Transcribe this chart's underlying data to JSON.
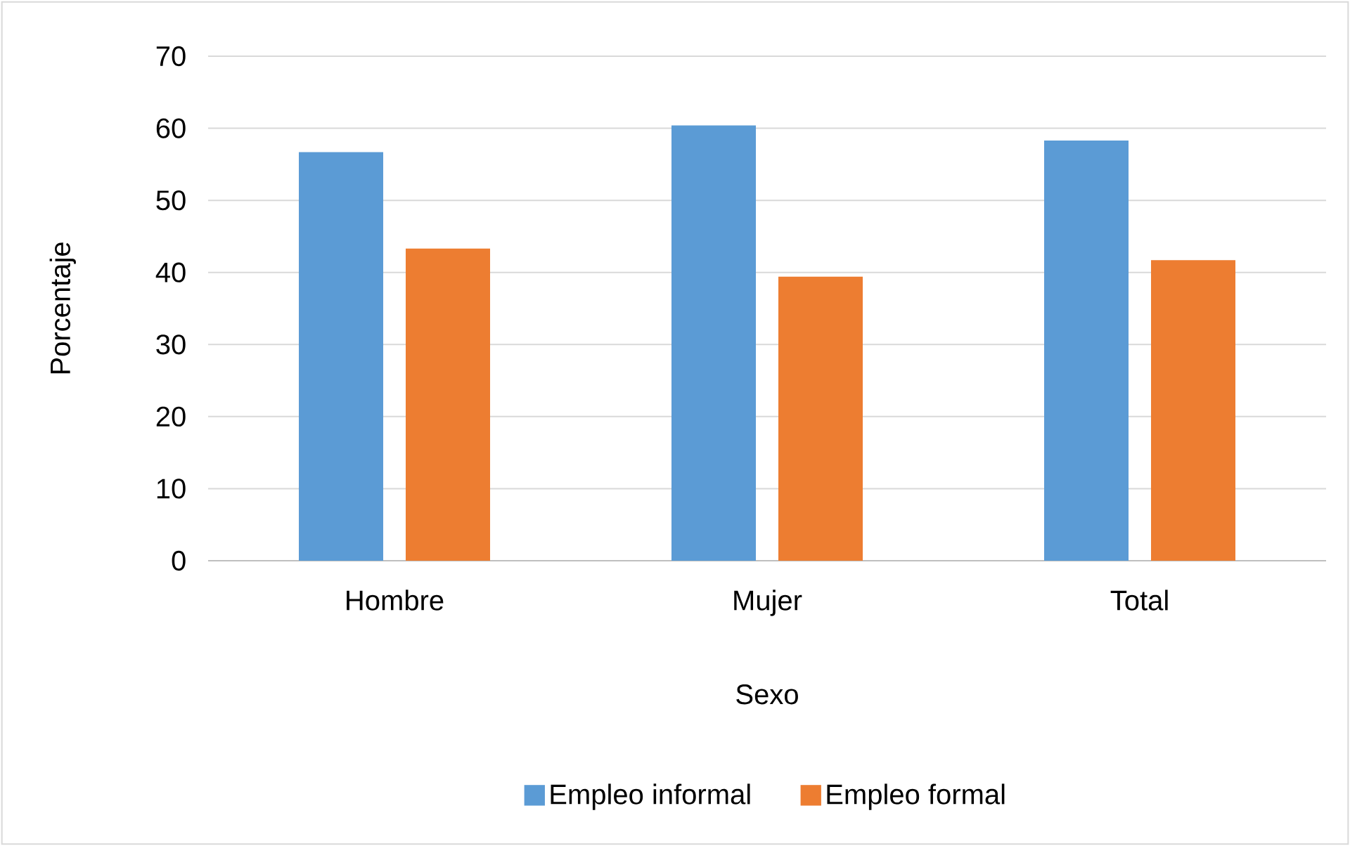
{
  "chart_data": {
    "type": "bar",
    "xlabel": "Sexo",
    "ylabel": "Porcentaje",
    "categories": [
      "Hombre",
      "Mujer",
      "Total"
    ],
    "series": [
      {
        "name": "Empleo informal",
        "color": "#5b9bd5",
        "values": [
          56.7,
          60.4,
          58.3
        ]
      },
      {
        "name": "Empleo formal",
        "color": "#ed7d31",
        "values": [
          43.3,
          39.4,
          41.7
        ]
      }
    ],
    "ylim": [
      0,
      70
    ],
    "yticks": [
      0,
      10,
      20,
      30,
      40,
      50,
      60,
      70
    ],
    "grid": "y",
    "legend": "bottom"
  }
}
